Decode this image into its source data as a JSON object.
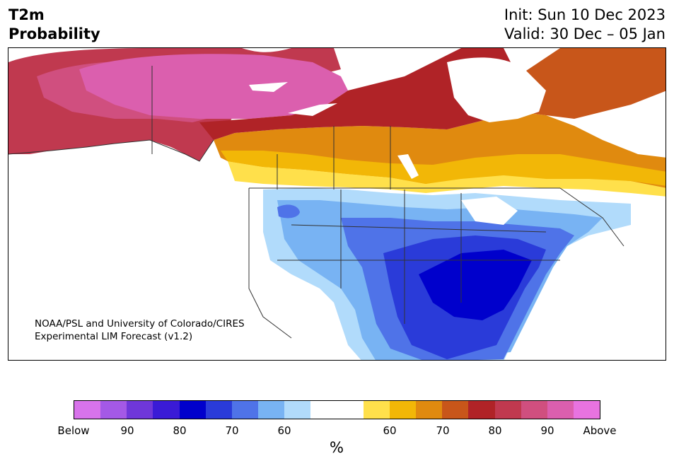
{
  "header": {
    "variable": "T2m",
    "subtitle": "Probability",
    "init": "Init: Sun 10 Dec 2023",
    "valid": "Valid: 30 Dec – 05 Jan"
  },
  "credit": {
    "line1": "NOAA/PSL and University of Colorado/CIRES",
    "line2": "Experimental LIM Forecast (v1.2)"
  },
  "colorbar": {
    "unit": "%",
    "colors": [
      "#d873eb",
      "#a459e6",
      "#6f37d9",
      "#3a1bd6",
      "#0000cc",
      "#2a3bd9",
      "#4f73e8",
      "#78b3f3",
      "#b1dbfb",
      "#ffffff",
      "#ffffff",
      "#ffe04b",
      "#f2b707",
      "#e08a0f",
      "#c8561a",
      "#b02327",
      "#c0394f",
      "#d04f7f",
      "#db5fae",
      "#e873e0"
    ],
    "ticks": [
      "Below",
      "90",
      "80",
      "70",
      "60",
      "60",
      "70",
      "80",
      "90",
      "Above"
    ]
  },
  "map": {
    "land_color": "#ffffff",
    "border_color": "#333333"
  }
}
